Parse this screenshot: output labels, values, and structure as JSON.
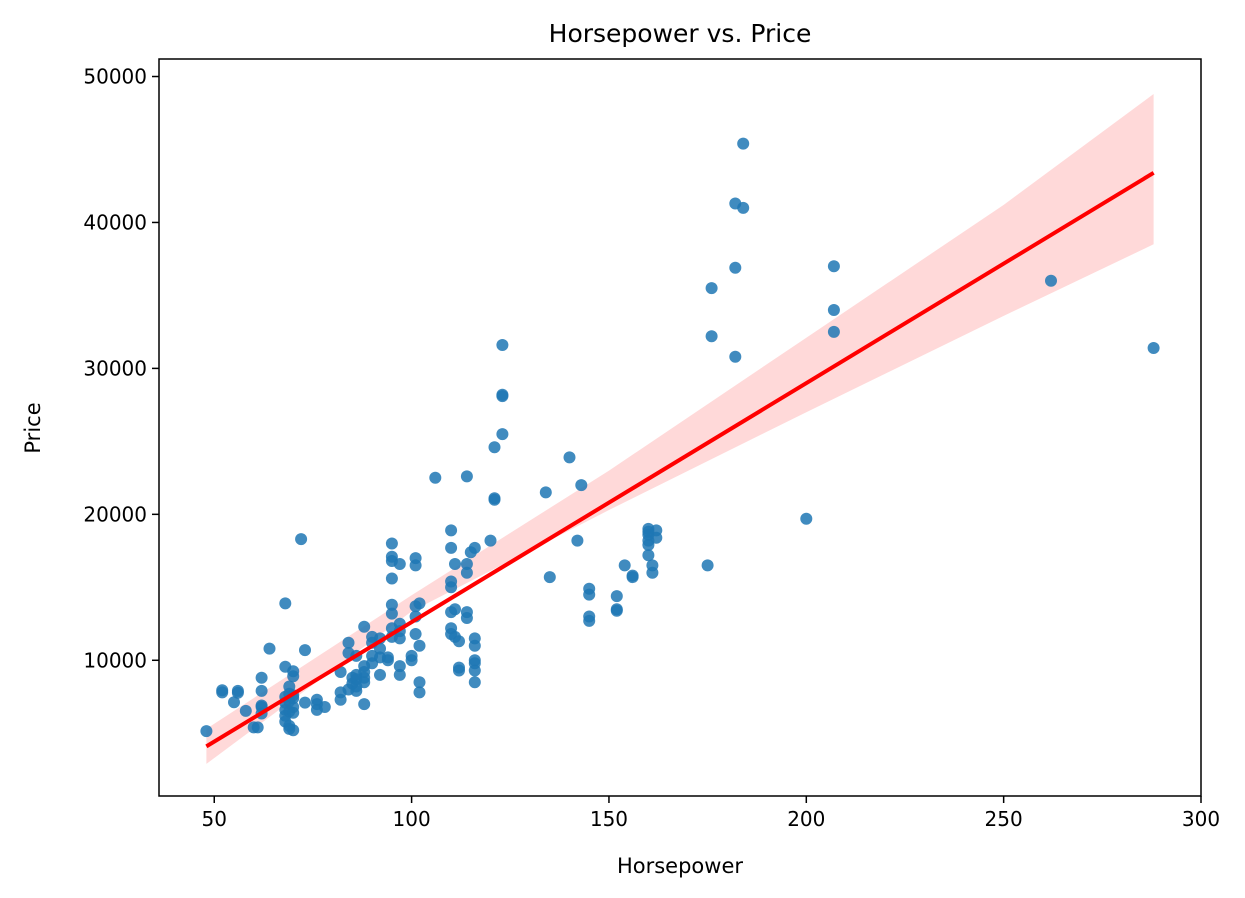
{
  "chart_data": {
    "type": "scatter",
    "title": "Horsepower vs. Price",
    "xlabel": "Horsepower",
    "ylabel": "Price",
    "xlim": [
      36,
      300
    ],
    "ylim": [
      700,
      51200
    ],
    "xticks": [
      50,
      100,
      150,
      200,
      250,
      300
    ],
    "yticks": [
      10000,
      20000,
      30000,
      40000,
      50000
    ],
    "grid": false,
    "colors": {
      "points": "#1f77b4",
      "regression_line": "#ff0000",
      "confidence_band": "#ffcccc"
    },
    "regression": {
      "x": [
        48,
        288
      ],
      "y": [
        4100,
        43400
      ]
    },
    "confidence_band": {
      "x": [
        48,
        100,
        150,
        200,
        250,
        288
      ],
      "lower": [
        2900,
        13350,
        20300,
        27000,
        33600,
        38500
      ],
      "upper": [
        5300,
        14450,
        23000,
        32100,
        41200,
        48800
      ]
    },
    "series": [
      {
        "x": [
          48,
          52,
          52,
          55,
          56,
          56,
          58,
          60,
          61,
          62,
          62,
          62,
          62,
          62,
          64,
          68,
          68,
          68,
          68,
          68,
          68,
          68,
          69,
          69,
          69,
          69,
          69,
          69,
          70,
          70,
          70,
          70,
          70,
          70,
          70,
          72,
          73,
          73,
          76,
          76,
          76,
          78,
          82,
          82,
          82,
          84,
          84,
          84,
          85,
          85,
          86,
          86,
          86,
          86,
          86,
          88,
          88,
          88,
          88,
          88,
          88,
          90,
          90,
          90,
          90,
          92,
          92,
          92,
          92,
          94,
          94,
          95,
          95,
          95,
          95,
          95,
          95,
          95,
          95,
          97,
          97,
          97,
          97,
          97,
          97,
          100,
          100,
          101,
          101,
          101,
          101,
          101,
          102,
          102,
          102,
          102,
          106,
          110,
          110,
          110,
          110,
          110,
          110,
          110,
          111,
          111,
          111,
          112,
          112,
          112,
          114,
          114,
          114,
          114,
          114,
          115,
          116,
          116,
          116,
          116,
          116,
          116,
          116,
          120,
          121,
          121,
          121,
          123,
          123,
          123,
          123,
          134,
          135,
          140,
          142,
          143,
          145,
          145,
          145,
          145,
          152,
          152,
          152,
          154,
          156,
          156,
          160,
          160,
          160,
          160,
          160,
          160,
          161,
          161,
          162,
          162,
          175,
          176,
          176,
          182,
          182,
          182,
          184,
          184,
          200,
          207,
          207,
          207,
          262,
          288
        ],
        "y": [
          5150,
          7950,
          7800,
          7130,
          7780,
          7900,
          6530,
          5400,
          5400,
          6350,
          6900,
          6800,
          7900,
          8800,
          10800,
          13900,
          9550,
          7500,
          7100,
          6600,
          6200,
          5800,
          5500,
          8200,
          7700,
          7200,
          6500,
          5300,
          9250,
          8900,
          7600,
          7400,
          6800,
          6400,
          5200,
          18300,
          7100,
          10700,
          7300,
          7000,
          6600,
          6800,
          9200,
          7800,
          7300,
          11200,
          10500,
          8000,
          8800,
          8400,
          10300,
          9000,
          8700,
          8200,
          7900,
          12300,
          9600,
          9200,
          8800,
          8500,
          7000,
          11600,
          11200,
          10300,
          9800,
          11500,
          10800,
          10200,
          9000,
          10200,
          10000,
          18000,
          17100,
          16800,
          15600,
          13800,
          13200,
          12200,
          11600,
          16600,
          12500,
          12000,
          11500,
          9600,
          9000,
          10300,
          10000,
          17000,
          16500,
          13700,
          13000,
          11800,
          13900,
          11000,
          8500,
          7800,
          22500,
          18900,
          17700,
          15400,
          15000,
          13300,
          12200,
          11800,
          16600,
          13500,
          11600,
          11300,
          9500,
          9300,
          22600,
          16600,
          16000,
          13300,
          12900,
          17400,
          17700,
          11500,
          11000,
          10000,
          9800,
          9300,
          8500,
          18200,
          24600,
          21100,
          21000,
          31600,
          28200,
          28100,
          25500,
          21500,
          15700,
          23900,
          18200,
          22000,
          14900,
          14500,
          13000,
          12700,
          14400,
          13500,
          13400,
          16500,
          15800,
          15700,
          19000,
          18600,
          18200,
          17900,
          17200,
          18800,
          16500,
          16000,
          18900,
          18400,
          16500,
          35500,
          32200,
          41300,
          36900,
          30800,
          45400,
          41000,
          19700,
          37000,
          34000,
          32500,
          36000,
          31400
        ]
      }
    ]
  }
}
